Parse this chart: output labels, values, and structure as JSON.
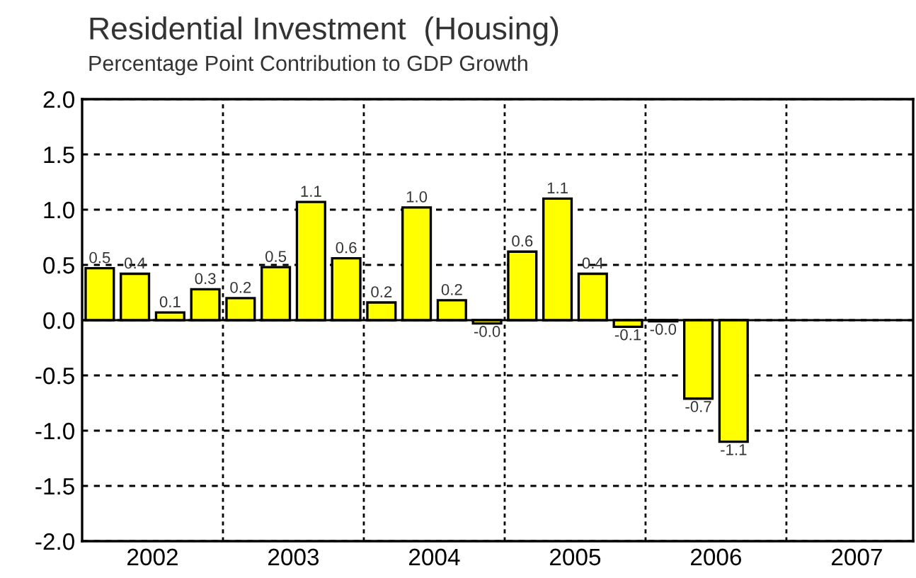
{
  "chart_data": {
    "type": "bar",
    "title": "Residential Investment  (Housing)",
    "subtitle": "Percentage Point Contribution to GDP Growth",
    "x": [
      2002.125,
      2002.375,
      2002.625,
      2002.875,
      2003.125,
      2003.375,
      2003.625,
      2003.875,
      2004.125,
      2004.375,
      2004.625,
      2004.875,
      2005.125,
      2005.375,
      2005.625,
      2005.875,
      2006.125,
      2006.375,
      2006.625
    ],
    "values": [
      0.47,
      0.42,
      0.07,
      0.28,
      0.2,
      0.48,
      1.07,
      0.56,
      0.16,
      1.02,
      0.18,
      -0.03,
      0.62,
      1.1,
      0.42,
      -0.06,
      -0.01,
      -0.71,
      -1.1
    ],
    "value_labels": [
      "0.5",
      "0.4",
      "0.1",
      "0.3",
      "0.2",
      "0.5",
      "1.1",
      "0.6",
      "0.2",
      "1.0",
      "0.2",
      "-0.0",
      "0.6",
      "1.1",
      "0.4",
      "-0.1",
      "-0.0",
      "-0.7",
      "-1.1"
    ],
    "color": "#ffff00",
    "xlim": [
      2002,
      2007.9
    ],
    "xticks": [
      {
        "value": 2002.5,
        "label": "2002"
      },
      {
        "value": 2003.5,
        "label": "2003"
      },
      {
        "value": 2004.5,
        "label": "2004"
      },
      {
        "value": 2005.5,
        "label": "2005"
      },
      {
        "value": 2006.5,
        "label": "2006"
      },
      {
        "value": 2007.5,
        "label": "2007"
      }
    ],
    "ylim": [
      -2.0,
      2.0
    ],
    "yticks": [
      {
        "value": -2.0,
        "label": "-2.0"
      },
      {
        "value": -1.5,
        "label": "-1.5"
      },
      {
        "value": -1.0,
        "label": "-1.0"
      },
      {
        "value": -0.5,
        "label": "-0.5"
      },
      {
        "value": 0.0,
        "label": "0.0"
      },
      {
        "value": 0.5,
        "label": "0.5"
      },
      {
        "value": 1.0,
        "label": "1.0"
      },
      {
        "value": 1.5,
        "label": "1.5"
      },
      {
        "value": 2.0,
        "label": "2.0"
      }
    ],
    "grid": "y",
    "ref_lines": [
      {
        "axis": "x",
        "value": 2003,
        "line_style": "dotted"
      },
      {
        "axis": "x",
        "value": 2004,
        "line_style": "dotted"
      },
      {
        "axis": "x",
        "value": 2005,
        "line_style": "dotted"
      },
      {
        "axis": "x",
        "value": 2006,
        "line_style": "dotted"
      },
      {
        "axis": "x",
        "value": 2007,
        "line_style": "dotted"
      }
    ]
  }
}
